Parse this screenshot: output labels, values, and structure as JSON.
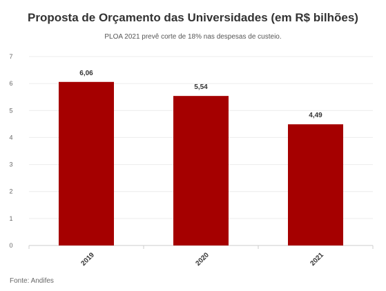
{
  "chart_data": {
    "type": "bar",
    "title": "Proposta de Orçamento das Universidades (em R$ bilhões)",
    "subtitle": "PLOA 2021 prevê corte de 18% nas despesas de custeio.",
    "categories": [
      "2019",
      "2020",
      "2021"
    ],
    "values": [
      6.06,
      5.54,
      4.49
    ],
    "value_labels": [
      "6,06",
      "5,54",
      "4,49"
    ],
    "yticks": [
      "0",
      "1",
      "2",
      "3",
      "4",
      "5",
      "6",
      "7"
    ],
    "ylim": [
      0,
      7
    ],
    "xlabel": "",
    "ylabel": "",
    "grid": true,
    "bar_color": "#a50000",
    "source": "Fonte: Andifes"
  }
}
